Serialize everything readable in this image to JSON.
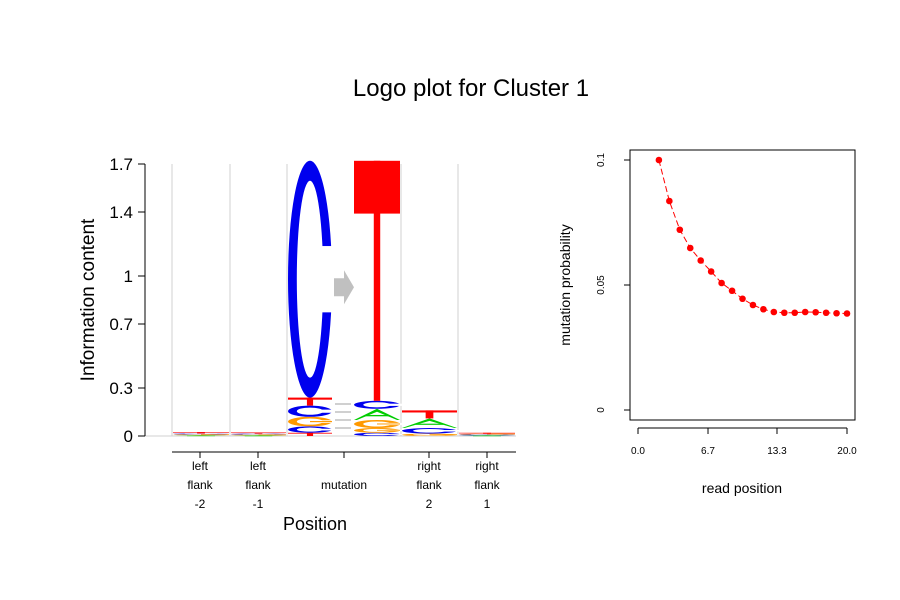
{
  "title": "Logo plot for Cluster 1",
  "colors": {
    "A": "#00cc00",
    "C": "#0000ee",
    "G": "#ff9900",
    "T": "#ff0000",
    "arrow": "#c0c0c0",
    "divider": "#d0d0d0",
    "point": "#ff0000"
  },
  "chart_data": [
    {
      "type": "logo",
      "ylabel": "Information content",
      "xlabel": "Position",
      "ylim": [
        0,
        1.7
      ],
      "yticks": [
        "0",
        "0.3",
        "0.7",
        "1",
        "1.4",
        "1.7"
      ],
      "ytick_values": [
        0,
        0.3,
        0.7,
        1,
        1.4,
        1.7
      ],
      "positions": [
        {
          "label_lines": [
            "left",
            "flank",
            "-2"
          ],
          "letters": [
            {
              "l": "A",
              "h": 0.005
            },
            {
              "l": "G",
              "h": 0.005
            },
            {
              "l": "C",
              "h": 0.006
            },
            {
              "l": "T",
              "h": 0.008
            }
          ]
        },
        {
          "label_lines": [
            "left",
            "flank",
            "-1"
          ],
          "letters": [
            {
              "l": "A",
              "h": 0.004
            },
            {
              "l": "G",
              "h": 0.005
            },
            {
              "l": "C",
              "h": 0.006
            },
            {
              "l": "T",
              "h": 0.007
            }
          ]
        },
        {
          "label_lines": [
            "mutation"
          ],
          "mutation": true,
          "from": [
            {
              "l": "T",
              "h": 0.02
            },
            {
              "l": "C",
              "h": 0.04
            },
            {
              "l": "G",
              "h": 0.06
            },
            {
              "l": "C",
              "h": 0.07
            },
            {
              "l": "T",
              "h": 0.05
            },
            {
              "l": "C",
              "h": 1.48
            }
          ],
          "to": [
            {
              "l": "C",
              "h": 0.02
            },
            {
              "l": "G",
              "h": 0.03
            },
            {
              "l": "G",
              "h": 0.05
            },
            {
              "l": "A",
              "h": 0.07
            },
            {
              "l": "C",
              "h": 0.05
            },
            {
              "l": "T",
              "h": 1.5
            }
          ]
        },
        {
          "label_lines": [
            "right",
            "flank",
            "2"
          ],
          "letters": [
            {
              "l": "G",
              "h": 0.015
            },
            {
              "l": "C",
              "h": 0.035
            },
            {
              "l": "A",
              "h": 0.06
            },
            {
              "l": "T",
              "h": 0.05
            }
          ]
        },
        {
          "label_lines": [
            "right",
            "flank",
            "1"
          ],
          "letters": [
            {
              "l": "A",
              "h": 0.004
            },
            {
              "l": "C",
              "h": 0.005
            },
            {
              "l": "G",
              "h": 0.005
            },
            {
              "l": "T",
              "h": 0.006
            }
          ]
        }
      ]
    },
    {
      "type": "line",
      "xlabel": "read position",
      "ylabel": "mutation probability",
      "xlim": [
        0,
        20.5
      ],
      "ylim": [
        0,
        0.1
      ],
      "xticks": [
        "0.0",
        "6.7",
        "13.3",
        "20.0"
      ],
      "xtick_values": [
        0,
        6.7,
        13.3,
        20.0
      ],
      "yticks": [
        "0",
        "0.05",
        "0.1"
      ],
      "ytick_values": [
        0,
        0.05,
        0.1
      ],
      "x": [
        2,
        3,
        4,
        5,
        6,
        7,
        8,
        9,
        10,
        11,
        12,
        13,
        14,
        15,
        16,
        17,
        18,
        19,
        20
      ],
      "y": [
        0.1,
        0.0836,
        0.0721,
        0.0648,
        0.0598,
        0.0554,
        0.0508,
        0.0477,
        0.0445,
        0.042,
        0.0403,
        0.0392,
        0.0389,
        0.0389,
        0.0392,
        0.0391,
        0.0389,
        0.0387,
        0.0386
      ]
    }
  ]
}
